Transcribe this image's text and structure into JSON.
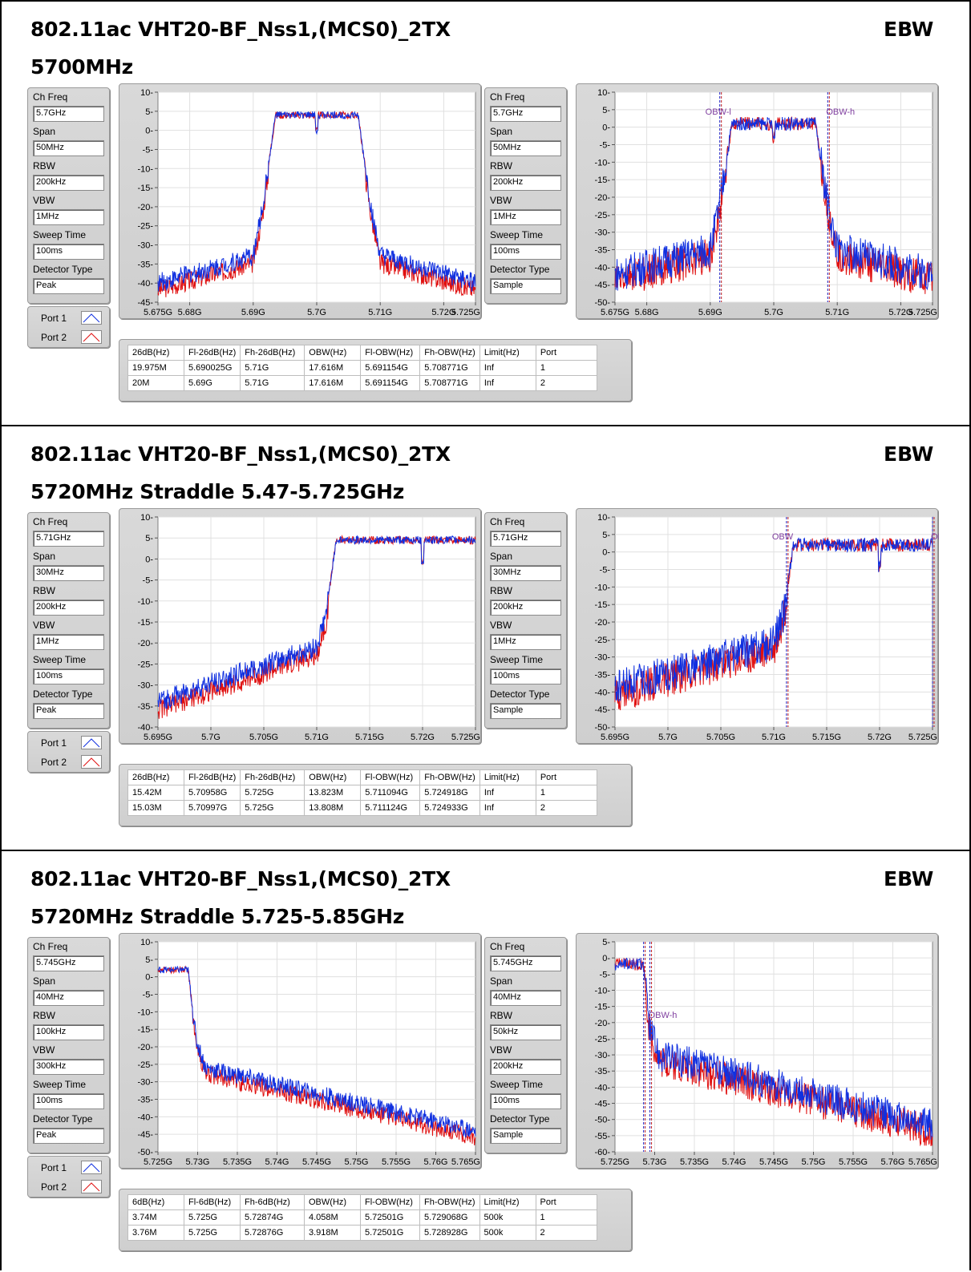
{
  "sections": [
    {
      "title": "802.11ac VHT20-BF_Nss1,(MCS0)_2TX",
      "subtitle": "5700MHz",
      "ebw": "EBW",
      "left_params": {
        "ch_freq_label": "Ch Freq",
        "ch_freq": "5.7GHz",
        "span_label": "Span",
        "span": "50MHz",
        "rbw_label": "RBW",
        "rbw": "200kHz",
        "vbw_label": "VBW",
        "vbw": "1MHz",
        "sweep_label": "Sweep Time",
        "sweep": "100ms",
        "detector_label": "Detector Type",
        "detector": "Peak"
      },
      "right_params": {
        "ch_freq_label": "Ch Freq",
        "ch_freq": "5.7GHz",
        "span_label": "Span",
        "span": "50MHz",
        "rbw_label": "RBW",
        "rbw": "200kHz",
        "vbw_label": "VBW",
        "vbw": "1MHz",
        "sweep_label": "Sweep Time",
        "sweep": "100ms",
        "detector_label": "Detector Type",
        "detector": "Sample"
      },
      "legend": {
        "port1": "Port 1",
        "port2": "Port 2"
      },
      "table": {
        "headers": [
          "26dB(Hz)",
          "Fl-26dB(Hz)",
          "Fh-26dB(Hz)",
          "OBW(Hz)",
          "Fl-OBW(Hz)",
          "Fh-OBW(Hz)",
          "Limit(Hz)",
          "Port"
        ],
        "rows": [
          [
            "19.975M",
            "5.690025G",
            "5.71G",
            "17.616M",
            "5.691154G",
            "5.708771G",
            "Inf",
            "1"
          ],
          [
            "20M",
            "5.69G",
            "5.71G",
            "17.616M",
            "5.691154G",
            "5.708771G",
            "Inf",
            "2"
          ]
        ]
      }
    },
    {
      "title": "802.11ac VHT20-BF_Nss1,(MCS0)_2TX",
      "subtitle": "5720MHz Straddle 5.47-5.725GHz",
      "ebw": "EBW",
      "left_params": {
        "ch_freq_label": "Ch Freq",
        "ch_freq": "5.71GHz",
        "span_label": "Span",
        "span": "30MHz",
        "rbw_label": "RBW",
        "rbw": "200kHz",
        "vbw_label": "VBW",
        "vbw": "1MHz",
        "sweep_label": "Sweep Time",
        "sweep": "100ms",
        "detector_label": "Detector Type",
        "detector": "Peak"
      },
      "right_params": {
        "ch_freq_label": "Ch Freq",
        "ch_freq": "5.71GHz",
        "span_label": "Span",
        "span": "30MHz",
        "rbw_label": "RBW",
        "rbw": "200kHz",
        "vbw_label": "VBW",
        "vbw": "1MHz",
        "sweep_label": "Sweep Time",
        "sweep": "100ms",
        "detector_label": "Detector Type",
        "detector": "Sample"
      },
      "legend": {
        "port1": "Port 1",
        "port2": "Port 2"
      },
      "table": {
        "headers": [
          "26dB(Hz)",
          "Fl-26dB(Hz)",
          "Fh-26dB(Hz)",
          "OBW(Hz)",
          "Fl-OBW(Hz)",
          "Fh-OBW(Hz)",
          "Limit(Hz)",
          "Port"
        ],
        "rows": [
          [
            "15.42M",
            "5.70958G",
            "5.725G",
            "13.823M",
            "5.711094G",
            "5.724918G",
            "Inf",
            "1"
          ],
          [
            "15.03M",
            "5.70997G",
            "5.725G",
            "13.808M",
            "5.711124G",
            "5.724933G",
            "Inf",
            "2"
          ]
        ]
      }
    },
    {
      "title": "802.11ac VHT20-BF_Nss1,(MCS0)_2TX",
      "subtitle": "5720MHz Straddle 5.725-5.85GHz",
      "ebw": "EBW",
      "left_params": {
        "ch_freq_label": "Ch Freq",
        "ch_freq": "5.745GHz",
        "span_label": "Span",
        "span": "40MHz",
        "rbw_label": "RBW",
        "rbw": "100kHz",
        "vbw_label": "VBW",
        "vbw": "300kHz",
        "sweep_label": "Sweep Time",
        "sweep": "100ms",
        "detector_label": "Detector Type",
        "detector": "Peak"
      },
      "right_params": {
        "ch_freq_label": "Ch Freq",
        "ch_freq": "5.745GHz",
        "span_label": "Span",
        "span": "40MHz",
        "rbw_label": "RBW",
        "rbw": "50kHz",
        "vbw_label": "VBW",
        "vbw": "200kHz",
        "sweep_label": "Sweep Time",
        "sweep": "100ms",
        "detector_label": "Detector Type",
        "detector": "Sample"
      },
      "legend": {
        "port1": "Port 1",
        "port2": "Port 2"
      },
      "table": {
        "headers": [
          "6dB(Hz)",
          "Fl-6dB(Hz)",
          "Fh-6dB(Hz)",
          "OBW(Hz)",
          "Fl-OBW(Hz)",
          "Fh-OBW(Hz)",
          "Limit(Hz)",
          "Port"
        ],
        "rows": [
          [
            "3.74M",
            "5.725G",
            "5.72874G",
            "4.058M",
            "5.72501G",
            "5.729068G",
            "500k",
            "1"
          ],
          [
            "3.76M",
            "5.725G",
            "5.72876G",
            "3.918M",
            "5.72501G",
            "5.728928G",
            "500k",
            "2"
          ]
        ]
      }
    }
  ],
  "chart_data": [
    {
      "type": "line",
      "section": 0,
      "plot": "left",
      "x_ticks": [
        "5.675G",
        "5.68G",
        "5.69G",
        "5.7G",
        "5.71G",
        "5.72G",
        "5.725G"
      ],
      "y_ticks": [
        "10",
        "5",
        "0",
        "-5",
        "-10",
        "-15",
        "-20",
        "-25",
        "-30",
        "-35",
        "-40",
        "-45"
      ],
      "ylim": [
        -45,
        10
      ],
      "series": [
        {
          "name": "Port 1",
          "color": "#1030e0"
        },
        {
          "name": "Port 2",
          "color": "#e01010"
        }
      ]
    },
    {
      "type": "line",
      "section": 0,
      "plot": "right",
      "x_ticks": [
        "5.675G",
        "5.68G",
        "5.69G",
        "5.7G",
        "5.71G",
        "5.72G",
        "5.725G"
      ],
      "y_ticks": [
        "10",
        "5",
        "0",
        "-5",
        "-10",
        "-15",
        "-20",
        "-25",
        "-30",
        "-35",
        "-40",
        "-45",
        "-50"
      ],
      "ylim": [
        -50,
        10
      ],
      "markers": [
        "OBW-l",
        "OBW-h"
      ],
      "series": [
        {
          "name": "Port 1",
          "color": "#1030e0"
        },
        {
          "name": "Port 2",
          "color": "#e01010"
        }
      ]
    },
    {
      "type": "line",
      "section": 1,
      "plot": "left",
      "x_ticks": [
        "5.695G",
        "5.7G",
        "5.705G",
        "5.71G",
        "5.715G",
        "5.72G",
        "5.725G"
      ],
      "y_ticks": [
        "10",
        "5",
        "0",
        "-5",
        "-10",
        "-15",
        "-20",
        "-25",
        "-30",
        "-35",
        "-40"
      ],
      "ylim": [
        -40,
        10
      ],
      "series": [
        {
          "name": "Port 1",
          "color": "#1030e0"
        },
        {
          "name": "Port 2",
          "color": "#e01010"
        }
      ]
    },
    {
      "type": "line",
      "section": 1,
      "plot": "right",
      "x_ticks": [
        "5.695G",
        "5.7G",
        "5.705G",
        "5.71G",
        "5.715G",
        "5.72G",
        "5.725G"
      ],
      "y_ticks": [
        "10",
        "5",
        "0",
        "-5",
        "-10",
        "-15",
        "-20",
        "-25",
        "-30",
        "-35",
        "-40",
        "-45",
        "-50"
      ],
      "ylim": [
        -50,
        10
      ],
      "markers": [
        "OBW",
        "OBW"
      ],
      "series": [
        {
          "name": "Port 1",
          "color": "#1030e0"
        },
        {
          "name": "Port 2",
          "color": "#e01010"
        }
      ]
    },
    {
      "type": "line",
      "section": 2,
      "plot": "left",
      "x_ticks": [
        "5.725G",
        "5.73G",
        "5.735G",
        "5.74G",
        "5.745G",
        "5.75G",
        "5.755G",
        "5.76G",
        "5.765G"
      ],
      "y_ticks": [
        "10",
        "5",
        "0",
        "-5",
        "-10",
        "-15",
        "-20",
        "-25",
        "-30",
        "-35",
        "-40",
        "-45",
        "-50"
      ],
      "ylim": [
        -50,
        10
      ],
      "series": [
        {
          "name": "Port 1",
          "color": "#1030e0"
        },
        {
          "name": "Port 2",
          "color": "#e01010"
        }
      ]
    },
    {
      "type": "line",
      "section": 2,
      "plot": "right",
      "x_ticks": [
        "5.725G",
        "5.73G",
        "5.735G",
        "5.74G",
        "5.745G",
        "5.75G",
        "5.755G",
        "5.76G",
        "5.765G"
      ],
      "y_ticks": [
        "5",
        "0",
        "-5",
        "-10",
        "-15",
        "-20",
        "-25",
        "-30",
        "-35",
        "-40",
        "-45",
        "-50",
        "-55",
        "-60"
      ],
      "ylim": [
        -60,
        5
      ],
      "markers": [
        "W-l",
        "OBW-h"
      ],
      "series": [
        {
          "name": "Port 1",
          "color": "#1030e0"
        },
        {
          "name": "Port 2",
          "color": "#e01010"
        }
      ]
    }
  ]
}
